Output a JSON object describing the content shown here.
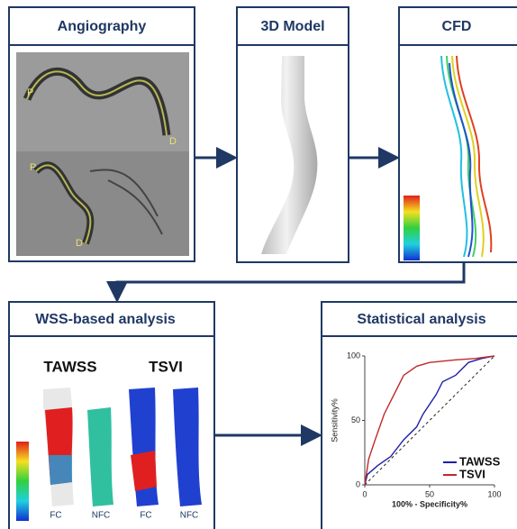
{
  "panels": {
    "angiography": {
      "title": "Angiography",
      "markers": [
        "P",
        "D",
        "P",
        "D"
      ]
    },
    "model": {
      "title": "3D Model"
    },
    "cfd": {
      "title": "CFD"
    },
    "wss": {
      "title": "WSS-based analysis",
      "columns": [
        "TAWSS",
        "TSVI"
      ],
      "labels": [
        "FC",
        "NFC",
        "FC",
        "NFC"
      ]
    },
    "stats": {
      "title": "Statistical analysis"
    }
  },
  "chart_data": {
    "type": "line",
    "xlabel": "100% - Specificity%",
    "ylabel": "Sensitivity%",
    "xlim": [
      0,
      100
    ],
    "ylim": [
      0,
      100
    ],
    "xticks": [
      0,
      50,
      100
    ],
    "yticks": [
      0,
      50,
      100
    ],
    "series": [
      {
        "name": "TAWSS",
        "color": "#1f1fa8",
        "x": [
          0,
          2,
          10,
          20,
          30,
          40,
          45,
          55,
          60,
          70,
          80,
          90,
          100
        ],
        "values": [
          0,
          8,
          15,
          22,
          35,
          45,
          55,
          70,
          80,
          85,
          95,
          98,
          100
        ]
      },
      {
        "name": "TSVI",
        "color": "#c0282a",
        "x": [
          0,
          3,
          8,
          15,
          20,
          25,
          30,
          40,
          50,
          70,
          85,
          100
        ],
        "values": [
          0,
          20,
          35,
          55,
          65,
          75,
          85,
          92,
          95,
          97,
          98,
          100
        ]
      }
    ]
  }
}
